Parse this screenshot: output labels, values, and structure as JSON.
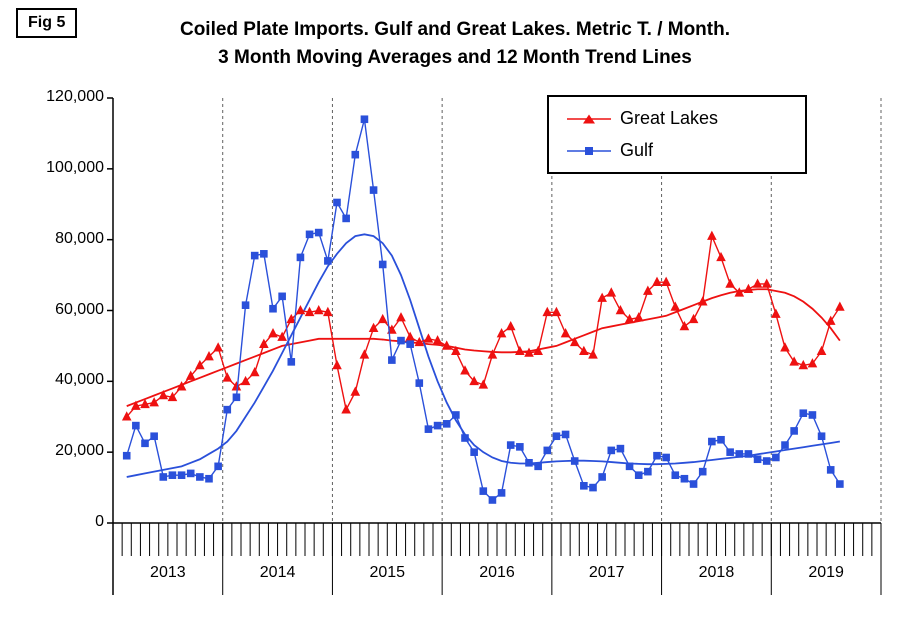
{
  "chart_data": {
    "type": "line",
    "fig_label": "Fig 5",
    "title_line1": "Coiled Plate Imports. Gulf and Great Lakes. Metric T. / Month.",
    "title_line2": "3 Month Moving Averages and 12 Month Trend Lines",
    "ylim": [
      0,
      120000
    ],
    "ytick_interval": 20000,
    "ytick_labels": [
      "0",
      "20,000",
      "40,000",
      "60,000",
      "80,000",
      "100,000",
      "120,000"
    ],
    "x_years": [
      "2013",
      "2014",
      "2015",
      "2016",
      "2017",
      "2018",
      "2019"
    ],
    "start_offset": 1,
    "grid": "vertical-dashed-at-year-boundaries",
    "legend_position": "top-right-inside",
    "series": [
      {
        "name": "Great Lakes",
        "color": "#ee1111",
        "marker": "triangle",
        "values": [
          30000,
          33000,
          33500,
          34000,
          36000,
          35500,
          38500,
          41500,
          44500,
          47000,
          49500,
          41000,
          38500,
          40000,
          42500,
          50500,
          53500,
          52500,
          57500,
          60000,
          59500,
          60000,
          59500,
          44500,
          32000,
          37000,
          47500,
          55000,
          57500,
          54500,
          58000,
          52500,
          51000,
          52000,
          51500,
          50000,
          48500,
          43000,
          40000,
          39000,
          47500,
          53500,
          55500,
          48500,
          48000,
          48500,
          59500,
          59500,
          53500,
          51000,
          48500,
          47500,
          63500,
          65000,
          60000,
          57500,
          58000,
          65500,
          68000,
          68000,
          61000,
          55500,
          57500,
          62500,
          81000,
          75000,
          67500,
          65000,
          66000,
          67500,
          67500,
          59000,
          49500,
          45500,
          44500,
          45000,
          48500,
          57000,
          61000
        ]
      },
      {
        "name": "Gulf",
        "color": "#2a50da",
        "marker": "square",
        "values": [
          19000,
          27500,
          22500,
          24500,
          13000,
          13500,
          13500,
          14000,
          13000,
          12500,
          16000,
          32000,
          35500,
          61500,
          75500,
          76000,
          60500,
          64000,
          45500,
          75000,
          81500,
          82000,
          74000,
          90500,
          86000,
          104000,
          114000,
          94000,
          73000,
          46000,
          51500,
          50500,
          39500,
          26500,
          27500,
          28000,
          30500,
          24000,
          20000,
          9000,
          6500,
          8500,
          22000,
          21500,
          17000,
          16000,
          20500,
          24500,
          25000,
          17500,
          10500,
          10000,
          13000,
          20500,
          21000,
          16000,
          13500,
          14500,
          19000,
          18500,
          13500,
          12500,
          11000,
          14500,
          23000,
          23500,
          20000,
          19500,
          19500,
          18000,
          17500,
          18500,
          22000,
          26000,
          31000,
          30500,
          24500,
          15000,
          11000
        ]
      }
    ],
    "trends": [
      {
        "name": "Great Lakes 12 month trend",
        "color": "#ee1111",
        "values": [
          33000,
          34000,
          35000,
          36000,
          37000,
          38000,
          39000,
          40000,
          41000,
          42000,
          43000,
          44000,
          45000,
          46000,
          47000,
          48000,
          49000,
          50000,
          50500,
          51000,
          51500,
          52000,
          52000,
          52000,
          52000,
          52000,
          52000,
          52000,
          51800,
          51500,
          51300,
          51000,
          50800,
          50500,
          50300,
          50000,
          49500,
          49000,
          48700,
          48500,
          48300,
          48200,
          48200,
          48300,
          48500,
          49000,
          49500,
          50000,
          51000,
          52000,
          53000,
          54000,
          55000,
          55500,
          56000,
          56500,
          57000,
          57500,
          58000,
          58500,
          59500,
          60500,
          61500,
          62500,
          63500,
          64300,
          65000,
          65500,
          65800,
          66000,
          66000,
          65500,
          65000,
          64000,
          62500,
          60500,
          58000,
          55000,
          51500
        ]
      },
      {
        "name": "Gulf 12 month trend",
        "color": "#2a50da",
        "values": [
          13000,
          13500,
          14000,
          14500,
          15000,
          15500,
          16000,
          17000,
          18000,
          19500,
          21000,
          23000,
          26000,
          30000,
          34000,
          38500,
          43000,
          48000,
          53000,
          58000,
          63000,
          68000,
          72500,
          76000,
          79000,
          81000,
          81500,
          81000,
          79000,
          75500,
          70000,
          63000,
          55000,
          47000,
          40000,
          34000,
          29000,
          25000,
          22000,
          20000,
          18500,
          17500,
          17000,
          16800,
          16800,
          17000,
          17200,
          17400,
          17500,
          17600,
          17600,
          17500,
          17400,
          17200,
          17000,
          16800,
          16700,
          16600,
          16600,
          16700,
          16800,
          17000,
          17200,
          17500,
          17800,
          18100,
          18400,
          18700,
          19000,
          19400,
          19800,
          20200,
          20600,
          21000,
          21400,
          21800,
          22200,
          22600,
          23000
        ]
      }
    ]
  }
}
